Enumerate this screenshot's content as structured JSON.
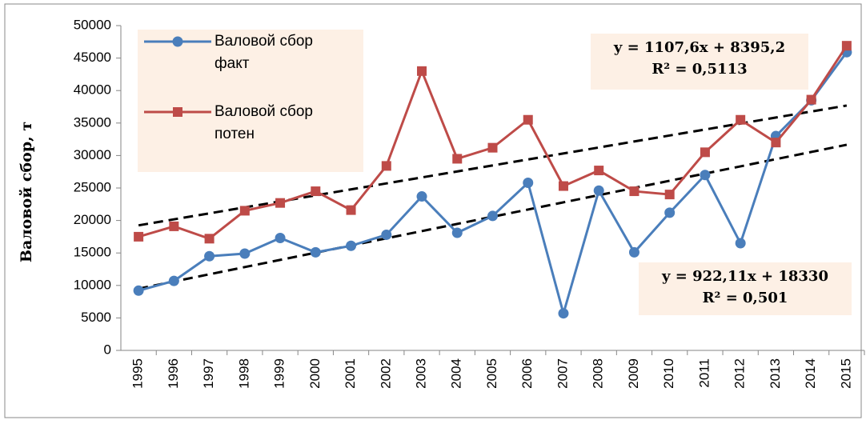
{
  "chart_data": {
    "type": "line",
    "y_label": "Валовой сбор, т",
    "categories": [
      "1995",
      "1996",
      "1997",
      "1998",
      "1999",
      "2000",
      "2001",
      "2002",
      "2003",
      "2004",
      "2005",
      "2006",
      "2007",
      "2008",
      "2009",
      "2010",
      "2011",
      "2012",
      "2013",
      "2014",
      "2015"
    ],
    "series": [
      {
        "name": "Валовой сбор факт",
        "color": "#4a7ebb",
        "marker": "circle",
        "values": [
          9200,
          10700,
          14500,
          14900,
          17300,
          15100,
          16100,
          17800,
          23700,
          18100,
          20700,
          25800,
          5700,
          24600,
          15100,
          21200,
          27000,
          16500,
          33000,
          38500,
          45900
        ]
      },
      {
        "name": "Валовой сбор потен",
        "color": "#be4b48",
        "marker": "square",
        "values": [
          17500,
          19100,
          17200,
          21500,
          22700,
          24500,
          21600,
          28400,
          43000,
          29500,
          31200,
          35500,
          25300,
          27700,
          24500,
          24000,
          30500,
          35500,
          32000,
          38600,
          46900
        ]
      }
    ],
    "trendlines": [
      {
        "slope": 1107.6,
        "intercept": 8395.2,
        "equation": "y = 1107,6x + 8395,2",
        "r2": "R² = 0,5113"
      },
      {
        "slope": 922.11,
        "intercept": 18330,
        "equation": "y = 922,11x + 18330",
        "r2": "R² = 0,501"
      }
    ],
    "ylim": [
      0,
      50000
    ],
    "yticks": [
      0,
      5000,
      10000,
      15000,
      20000,
      25000,
      30000,
      35000,
      40000,
      45000,
      50000
    ],
    "grid": false
  }
}
